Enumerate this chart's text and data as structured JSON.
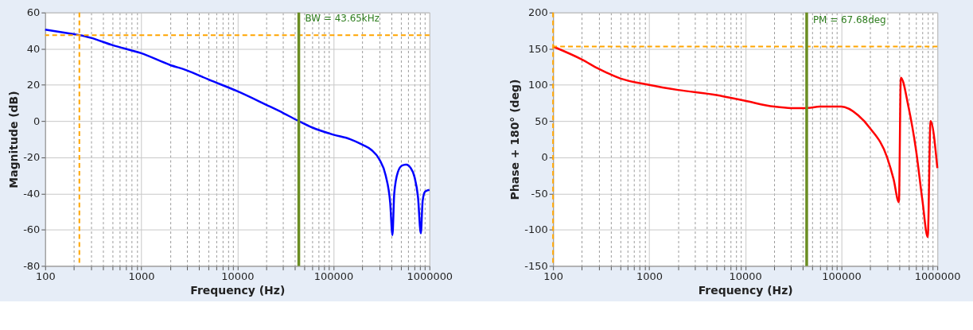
{
  "chart_data": [
    {
      "type": "line",
      "xlabel": "Frequency (Hz)",
      "ylabel": "Magnitude (dB)",
      "log": "x",
      "grid": true,
      "marker": "none",
      "line_style": "solid",
      "xlim": [
        100,
        1000000
      ],
      "ylim": [
        -80,
        60
      ],
      "xticks": [
        100,
        {
          "value": 200,
          "label": null
        },
        {
          "value": 300,
          "label": null
        },
        {
          "value": 400,
          "label": null
        },
        {
          "value": 500,
          "label": null
        },
        {
          "value": 600,
          "label": null
        },
        {
          "value": 700,
          "label": null
        },
        {
          "value": 800,
          "label": null
        },
        {
          "value": 900,
          "label": null
        },
        1000,
        {
          "value": 2000,
          "label": null
        },
        {
          "value": 3000,
          "label": null
        },
        {
          "value": 4000,
          "label": null
        },
        {
          "value": 5000,
          "label": null
        },
        {
          "value": 6000,
          "label": null
        },
        {
          "value": 7000,
          "label": null
        },
        {
          "value": 8000,
          "label": null
        },
        {
          "value": 9000,
          "label": null
        },
        10000,
        {
          "value": 20000,
          "label": null
        },
        {
          "value": 30000,
          "label": null
        },
        {
          "value": 40000,
          "label": null
        },
        {
          "value": 50000,
          "label": null
        },
        {
          "value": 60000,
          "label": null
        },
        {
          "value": 70000,
          "label": null
        },
        {
          "value": 80000,
          "label": null
        },
        {
          "value": 90000,
          "label": null
        },
        100000,
        {
          "value": 200000,
          "label": null
        },
        {
          "value": 300000,
          "label": null
        },
        {
          "value": 400000,
          "label": null
        },
        {
          "value": 500000,
          "label": null
        },
        {
          "value": 600000,
          "label": null
        },
        {
          "value": 700000,
          "label": null
        },
        {
          "value": 800000,
          "label": null
        },
        {
          "value": 900000,
          "label": null
        },
        1000000
      ],
      "yticks": [
        -80,
        -60,
        -40,
        -20,
        0,
        20,
        40,
        60
      ],
      "series": [
        {
          "color": "#0000ff",
          "x": [
            100,
            200,
            230,
            300,
            500,
            1000,
            2000,
            3000,
            5000,
            10000,
            20000,
            30000,
            43650,
            60000,
            100000,
            150000,
            200000,
            250000,
            300000,
            350000,
            390000,
            412000,
            430000,
            470000,
            520000,
            575000,
            630000,
            700000,
            760000,
            813000,
            850000,
            900000,
            1000000
          ],
          "values": [
            50.5,
            48,
            47.5,
            46,
            42,
            37.5,
            31,
            28,
            23,
            16.5,
            9,
            4.5,
            0,
            -3.5,
            -7.5,
            -10,
            -13,
            -16,
            -21,
            -30,
            -45,
            -63,
            -40,
            -28,
            -24.5,
            -24,
            -25.5,
            -31,
            -42,
            -62,
            -44,
            -39,
            -38
          ]
        }
      ],
      "ref_lines": [
        {
          "axis": "x",
          "value": 227,
          "color": "#ffa500",
          "line_style": "dashed"
        },
        {
          "axis": "y",
          "value": 47.5,
          "color": "#ffa500",
          "line_style": "dashed"
        },
        {
          "axis": "x",
          "value": 43650,
          "color": "#6b8e23",
          "line_style": "solid"
        }
      ],
      "annotations": [
        {
          "text": "BW = 43.65kHz",
          "x": 43650,
          "y": 57
        }
      ]
    },
    {
      "type": "line",
      "xlabel": "Frequency (Hz)",
      "ylabel": "Phase + 180° (deg)",
      "log": "x",
      "grid": true,
      "marker": "none",
      "line_style": "solid",
      "xlim": [
        100,
        1000000
      ],
      "ylim": [
        -150,
        200
      ],
      "xticks": [
        100,
        {
          "value": 200,
          "label": null
        },
        {
          "value": 300,
          "label": null
        },
        {
          "value": 400,
          "label": null
        },
        {
          "value": 500,
          "label": null
        },
        {
          "value": 600,
          "label": null
        },
        {
          "value": 700,
          "label": null
        },
        {
          "value": 800,
          "label": null
        },
        {
          "value": 900,
          "label": null
        },
        1000,
        {
          "value": 2000,
          "label": null
        },
        {
          "value": 3000,
          "label": null
        },
        {
          "value": 4000,
          "label": null
        },
        {
          "value": 5000,
          "label": null
        },
        {
          "value": 6000,
          "label": null
        },
        {
          "value": 7000,
          "label": null
        },
        {
          "value": 8000,
          "label": null
        },
        {
          "value": 9000,
          "label": null
        },
        10000,
        {
          "value": 20000,
          "label": null
        },
        {
          "value": 30000,
          "label": null
        },
        {
          "value": 40000,
          "label": null
        },
        {
          "value": 50000,
          "label": null
        },
        {
          "value": 60000,
          "label": null
        },
        {
          "value": 70000,
          "label": null
        },
        {
          "value": 80000,
          "label": null
        },
        {
          "value": 90000,
          "label": null
        },
        100000,
        {
          "value": 200000,
          "label": null
        },
        {
          "value": 300000,
          "label": null
        },
        {
          "value": 400000,
          "label": null
        },
        {
          "value": 500000,
          "label": null
        },
        {
          "value": 600000,
          "label": null
        },
        {
          "value": 700000,
          "label": null
        },
        {
          "value": 800000,
          "label": null
        },
        {
          "value": 900000,
          "label": null
        },
        1000000
      ],
      "yticks": [
        -150,
        -100,
        -50,
        0,
        50,
        100,
        150,
        200
      ],
      "series": [
        {
          "color": "#ff0000",
          "x": [
            100,
            200,
            300,
            500,
            1000,
            2000,
            5000,
            10000,
            20000,
            30000,
            43650,
            60000,
            100000,
            150000,
            200000,
            300000,
            350000,
            398000,
            417000,
            500000,
            600000,
            700000,
            794000,
            850000,
            1000000
          ],
          "values": [
            153,
            135,
            122,
            109,
            100,
            93,
            86,
            78,
            70,
            68,
            68,
            70,
            70,
            58,
            40,
            0,
            -30,
            -62,
            110,
            70,
            10,
            -60,
            -110,
            50,
            -15
          ]
        }
      ],
      "ref_lines": [
        {
          "axis": "x",
          "value": 100,
          "color": "#ffa500",
          "line_style": "dashed"
        },
        {
          "axis": "y",
          "value": 153,
          "color": "#ffa500",
          "line_style": "dashed"
        },
        {
          "axis": "x",
          "value": 43650,
          "color": "#6b8e23",
          "line_style": "solid"
        }
      ],
      "annotations": [
        {
          "text": "PM = 67.68deg",
          "x": 43650,
          "y": 190
        }
      ]
    }
  ]
}
